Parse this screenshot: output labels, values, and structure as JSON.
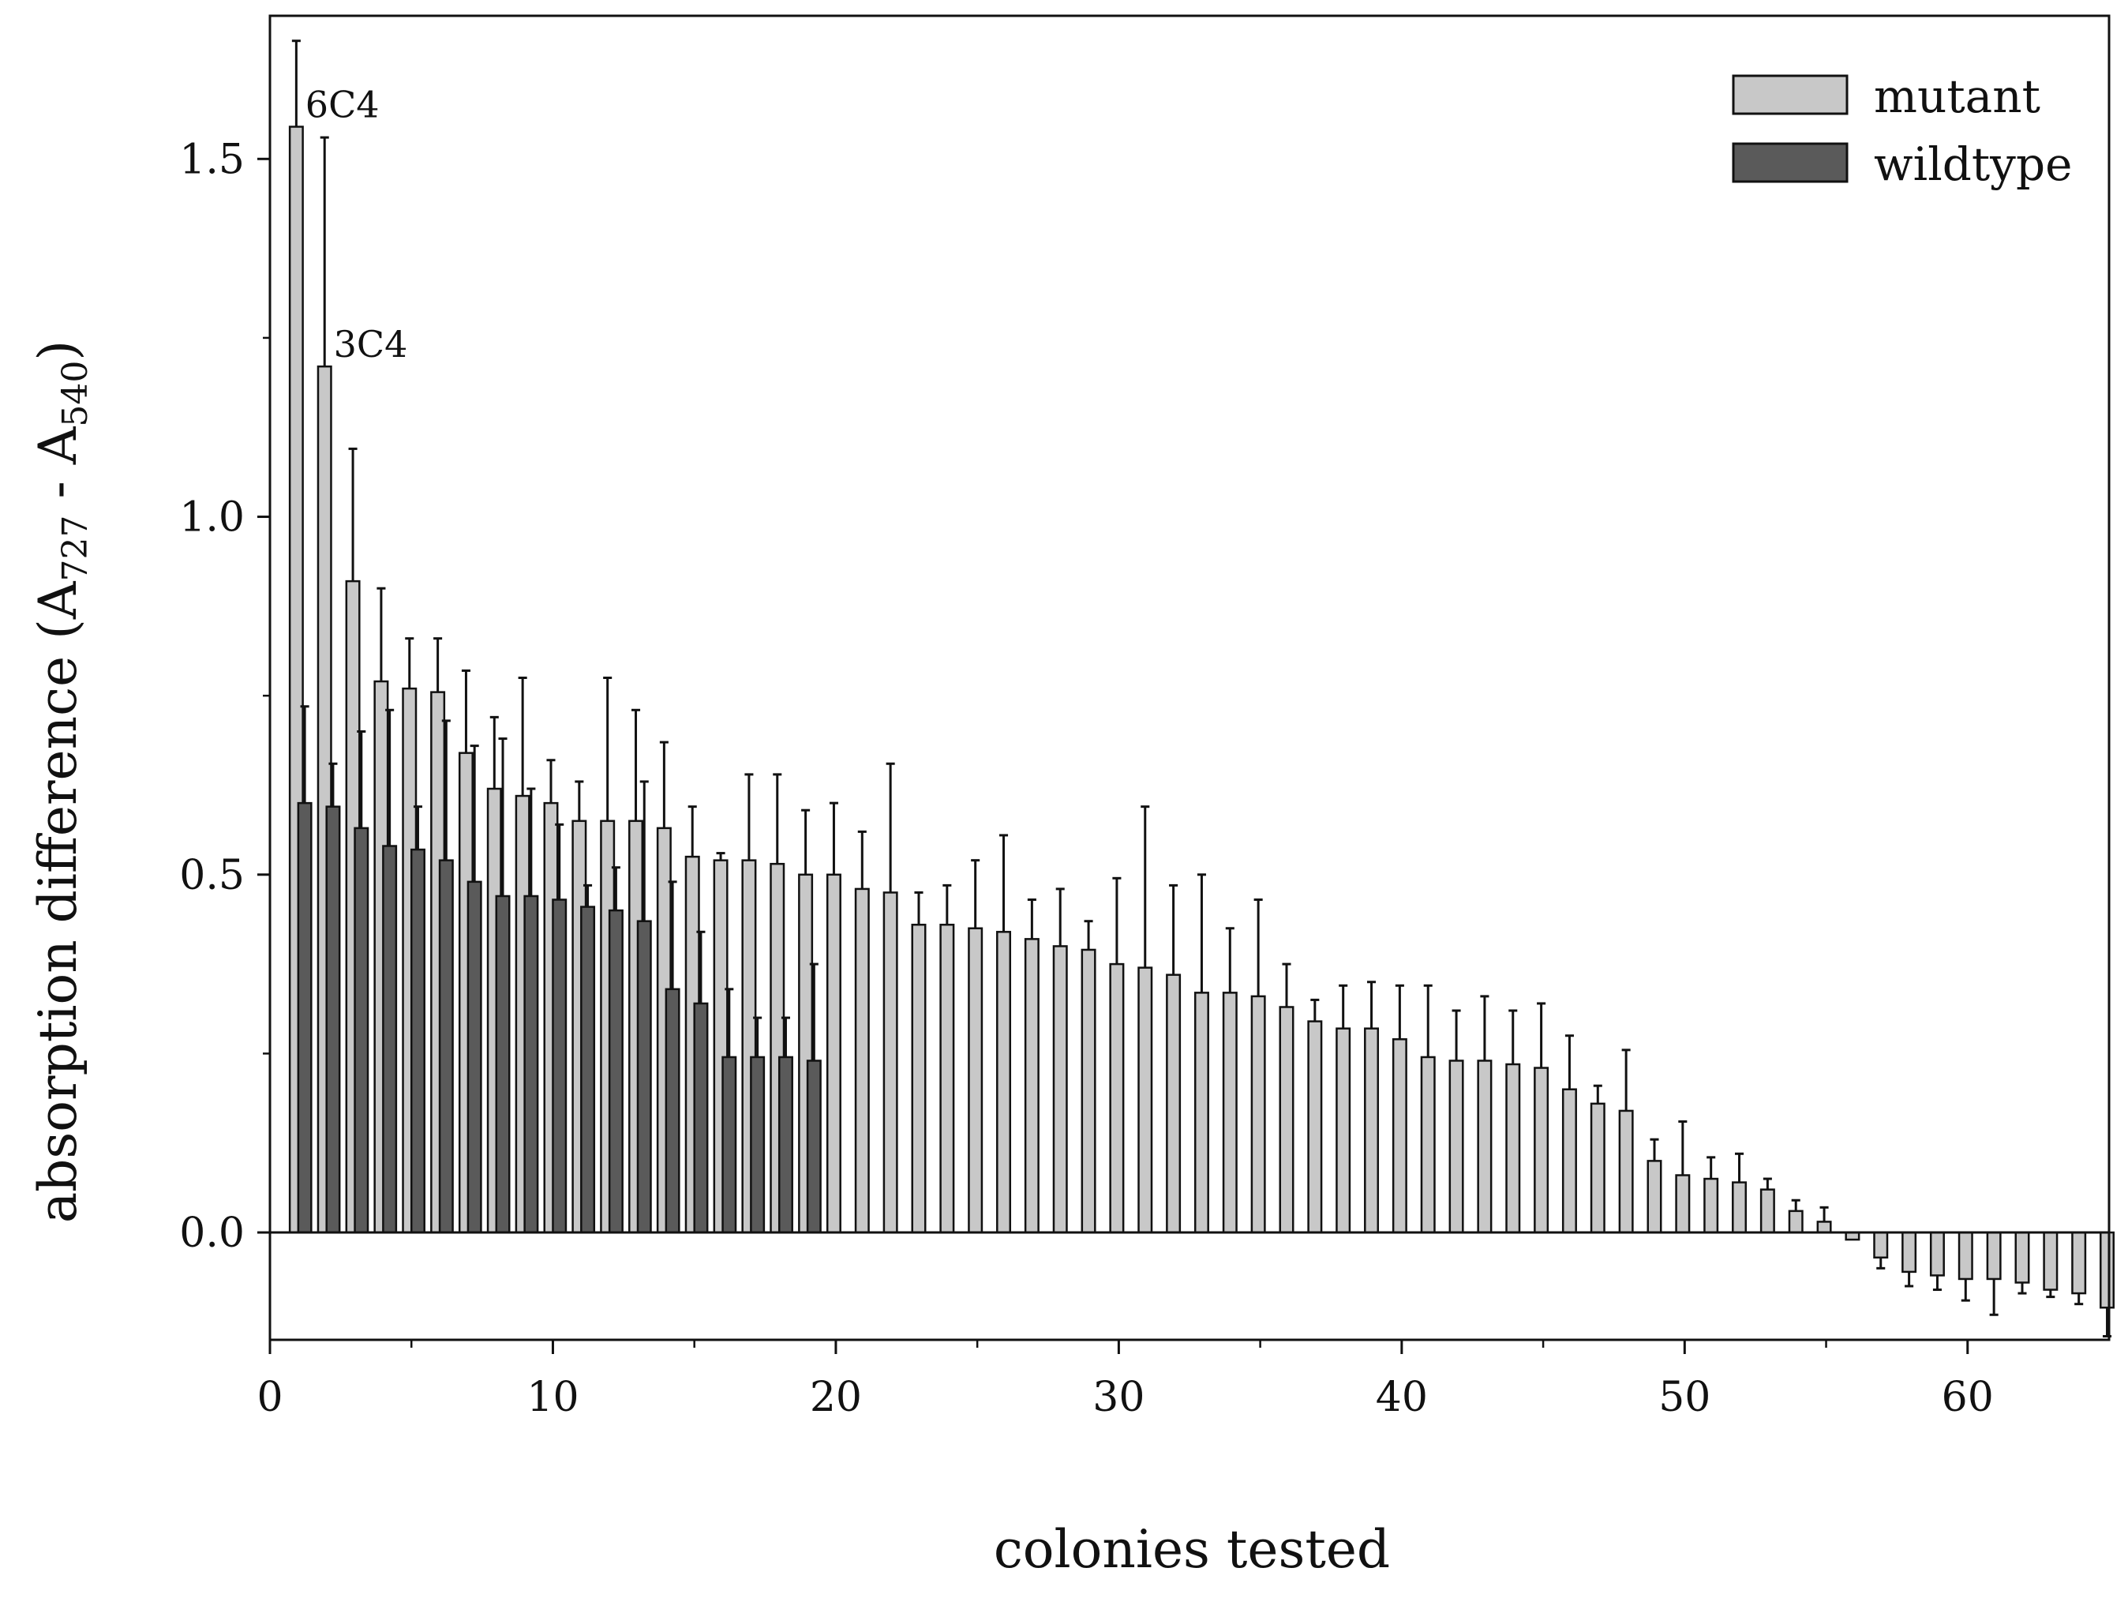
{
  "chart_data": {
    "type": "bar",
    "xlabel": "colonies tested",
    "ylabel": {
      "prefix": "absorption difference (A",
      "sub1": "727",
      "middle": " - A",
      "sub2": "540",
      "suffix": ")"
    },
    "xlim": [
      0,
      65
    ],
    "ylim": [
      -0.15,
      1.7
    ],
    "xticks": [
      0,
      10,
      20,
      30,
      40,
      50,
      60
    ],
    "xtick_labels": [
      "0",
      "10",
      "20",
      "30",
      "40",
      "50",
      "60"
    ],
    "yticks": [
      0.0,
      0.5,
      1.0,
      1.5
    ],
    "ytick_labels": [
      "0.0",
      "0.5",
      "1.0",
      "1.5"
    ],
    "grid": false,
    "legend": {
      "position": "top-right",
      "entries": [
        "mutant",
        "wildtype"
      ]
    },
    "annotations": [
      {
        "text": "6C4",
        "x": 1
      },
      {
        "text": "3C4",
        "x": 2
      }
    ],
    "series": [
      {
        "name": "mutant",
        "color": "#c8c8c8",
        "x": [
          1,
          2,
          3,
          4,
          5,
          6,
          7,
          8,
          9,
          10,
          11,
          12,
          13,
          14,
          15,
          16,
          17,
          18,
          19,
          20,
          21,
          22,
          23,
          24,
          25,
          26,
          27,
          28,
          29,
          30,
          31,
          32,
          33,
          34,
          35,
          36,
          37,
          38,
          39,
          40,
          41,
          42,
          43,
          44,
          45,
          46,
          47,
          48,
          49,
          50,
          51,
          52,
          53,
          54,
          55,
          56,
          57,
          58,
          59,
          60,
          61,
          62,
          63,
          64,
          65
        ],
        "values": [
          1.545,
          1.21,
          0.91,
          0.77,
          0.76,
          0.755,
          0.67,
          0.62,
          0.61,
          0.6,
          0.575,
          0.575,
          0.575,
          0.565,
          0.525,
          0.52,
          0.52,
          0.515,
          0.5,
          0.5,
          0.48,
          0.475,
          0.43,
          0.43,
          0.425,
          0.42,
          0.41,
          0.4,
          0.395,
          0.375,
          0.37,
          0.36,
          0.335,
          0.335,
          0.33,
          0.315,
          0.295,
          0.285,
          0.285,
          0.27,
          0.245,
          0.24,
          0.24,
          0.235,
          0.23,
          0.2,
          0.18,
          0.17,
          0.1,
          0.08,
          0.075,
          0.07,
          0.06,
          0.03,
          0.015,
          -0.01,
          -0.035,
          -0.055,
          -0.06,
          -0.065,
          -0.065,
          -0.07,
          -0.08,
          -0.085,
          -0.105
        ],
        "errors": [
          0.12,
          0.32,
          0.185,
          0.13,
          0.07,
          0.075,
          0.115,
          0.1,
          0.165,
          0.06,
          0.055,
          0.2,
          0.155,
          0.12,
          0.07,
          0.01,
          0.12,
          0.125,
          0.09,
          0.1,
          0.08,
          0.18,
          0.045,
          0.055,
          0.095,
          0.135,
          0.055,
          0.08,
          0.04,
          0.12,
          0.225,
          0.125,
          0.165,
          0.09,
          0.135,
          0.06,
          0.03,
          0.06,
          0.065,
          0.075,
          0.1,
          0.07,
          0.09,
          0.075,
          0.09,
          0.075,
          0.025,
          0.085,
          0.03,
          0.075,
          0.03,
          0.04,
          0.015,
          0.015,
          0.02,
          0.0,
          0.015,
          0.02,
          0.02,
          0.03,
          0.05,
          0.015,
          0.01,
          0.015,
          0.04
        ]
      },
      {
        "name": "wildtype",
        "color": "#5a5a5a",
        "x": [
          1,
          2,
          3,
          4,
          5,
          6,
          7,
          8,
          9,
          10,
          11,
          12,
          13,
          14,
          15,
          16,
          17,
          18,
          19
        ],
        "values": [
          0.6,
          0.595,
          0.565,
          0.54,
          0.535,
          0.52,
          0.49,
          0.47,
          0.47,
          0.465,
          0.455,
          0.45,
          0.435,
          0.34,
          0.32,
          0.245,
          0.245,
          0.245,
          0.24
        ],
        "errors": [
          0.135,
          0.06,
          0.135,
          0.19,
          0.06,
          0.195,
          0.19,
          0.22,
          0.15,
          0.105,
          0.03,
          0.06,
          0.195,
          0.15,
          0.1,
          0.095,
          0.055,
          0.055,
          0.135
        ]
      }
    ]
  }
}
